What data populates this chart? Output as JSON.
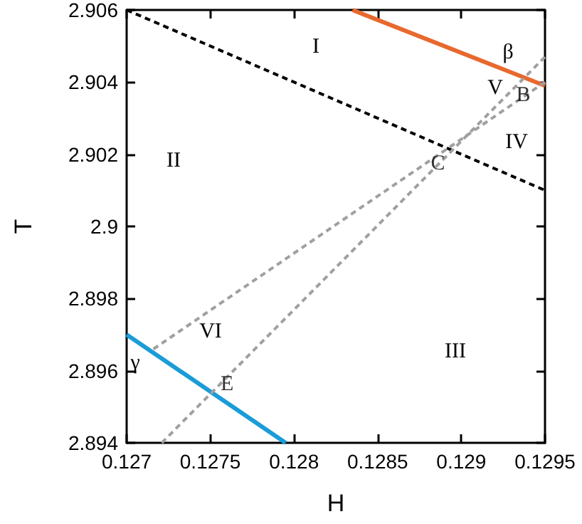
{
  "chart_data": {
    "type": "line",
    "xlabel": "H",
    "ylabel": "T",
    "xlim": [
      0.127,
      0.1295
    ],
    "xticks": [
      0.127,
      0.1275,
      0.128,
      0.1285,
      0.129,
      0.1295
    ],
    "ylim": [
      2.894,
      2.906
    ],
    "yticks": [
      2.894,
      2.896,
      2.898,
      2.9,
      2.902,
      2.904,
      2.906
    ],
    "grid": false,
    "marker": "none",
    "series": [
      {
        "color": "#e8692e",
        "line_style": "solid",
        "x": [
          0.12835,
          0.1295
        ],
        "values": [
          2.906,
          2.9039
        ]
      },
      {
        "color": "#000000",
        "line_style": "dashed",
        "x": [
          0.127,
          0.1295
        ],
        "values": [
          2.906,
          2.901
        ]
      },
      {
        "color": "#1a9cd8",
        "line_style": "solid",
        "x": [
          0.127,
          0.12795
        ],
        "values": [
          2.897,
          2.894
        ]
      },
      {
        "color": "#a0a0a0",
        "line_style": "dashed",
        "x": [
          0.12716,
          0.1295
        ],
        "values": [
          2.8966,
          2.904
        ]
      },
      {
        "color": "#a0a0a0",
        "line_style": "dashed",
        "x": [
          0.12721,
          0.1295
        ],
        "values": [
          2.894,
          2.9047
        ]
      }
    ],
    "annotations": [
      "I",
      "II",
      "III",
      "IV",
      "VI",
      "β",
      "γ",
      "V",
      {
        "text": "B",
        "x": 0.12937,
        "y": 2.90363
      },
      {
        "text": "C",
        "x": 0.12886,
        "y": 2.90174
      },
      {
        "text": "E",
        "x": 0.1276,
        "y": 2.89562
      }
    ]
  }
}
